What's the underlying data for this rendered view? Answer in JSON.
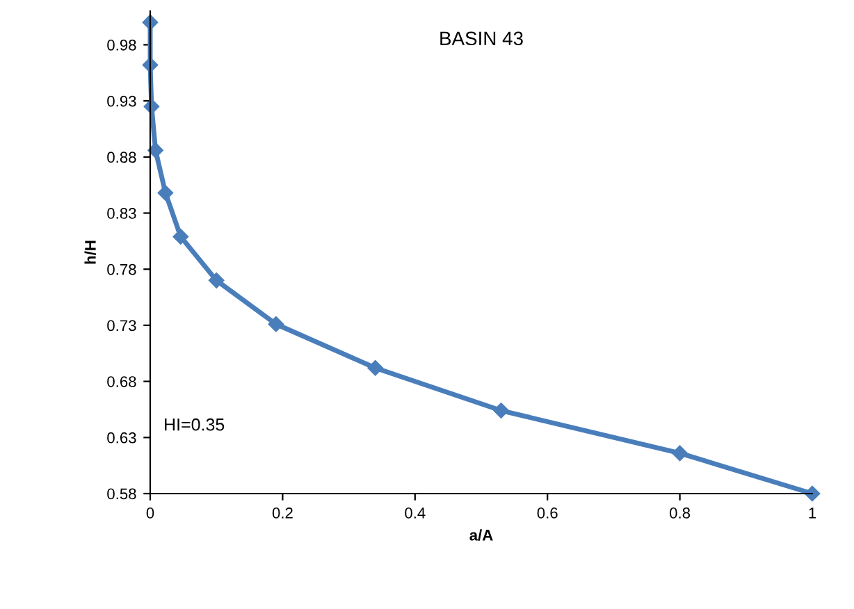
{
  "chart_data": {
    "type": "line",
    "title": "BASIN 43",
    "xlabel": "a/A",
    "ylabel": "h/H",
    "annotations": [
      "HI=0.35"
    ],
    "series": [
      {
        "color": "#4a7ebb",
        "x": [
          0,
          0,
          0.002,
          0.008,
          0.023,
          0.046,
          0.1,
          0.19,
          0.34,
          0.53,
          0.8,
          1.0
        ],
        "values": [
          1.0,
          0.962,
          0.925,
          0.886,
          0.848,
          0.809,
          0.77,
          0.731,
          0.692,
          0.654,
          0.616,
          0.58
        ]
      }
    ],
    "marker": "diamond",
    "grid": false,
    "legend": false,
    "xlim": [
      0,
      1
    ],
    "xticks": [
      0,
      0.2,
      0.4,
      0.6,
      0.8,
      1
    ],
    "ylim": [
      0.58,
      1.01
    ],
    "yticks": [
      0.58,
      0.63,
      0.68,
      0.73,
      0.78,
      0.83,
      0.88,
      0.93,
      0.98
    ]
  }
}
